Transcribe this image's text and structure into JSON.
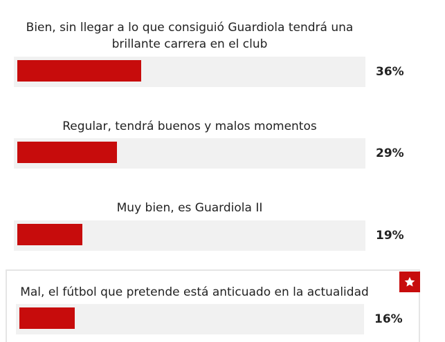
{
  "poll": {
    "options": [
      {
        "label_line1": "Bien, sin llegar a lo que consiguió Guardiola tendrá una",
        "label_line2": "brillante carrera en el club",
        "percent": 36,
        "percent_label": "36%",
        "highlighted": false
      },
      {
        "label_line1": "Regular, tendrá buenos y malos momentos",
        "label_line2": "",
        "percent": 29,
        "percent_label": "29%",
        "highlighted": false
      },
      {
        "label_line1": "Muy bien, es Guardiola II",
        "label_line2": "",
        "percent": 19,
        "percent_label": "19%",
        "highlighted": false
      },
      {
        "label_line1": "Mal, el fútbol que pretende está anticuado en la actualidad",
        "label_line2": "",
        "percent": 16,
        "percent_label": "16%",
        "highlighted": true
      }
    ],
    "badge_icon": "star-icon",
    "colors": {
      "bar_fill": "#c70c0c",
      "bar_track": "#f1f1f1",
      "badge": "#c70c0c"
    }
  }
}
